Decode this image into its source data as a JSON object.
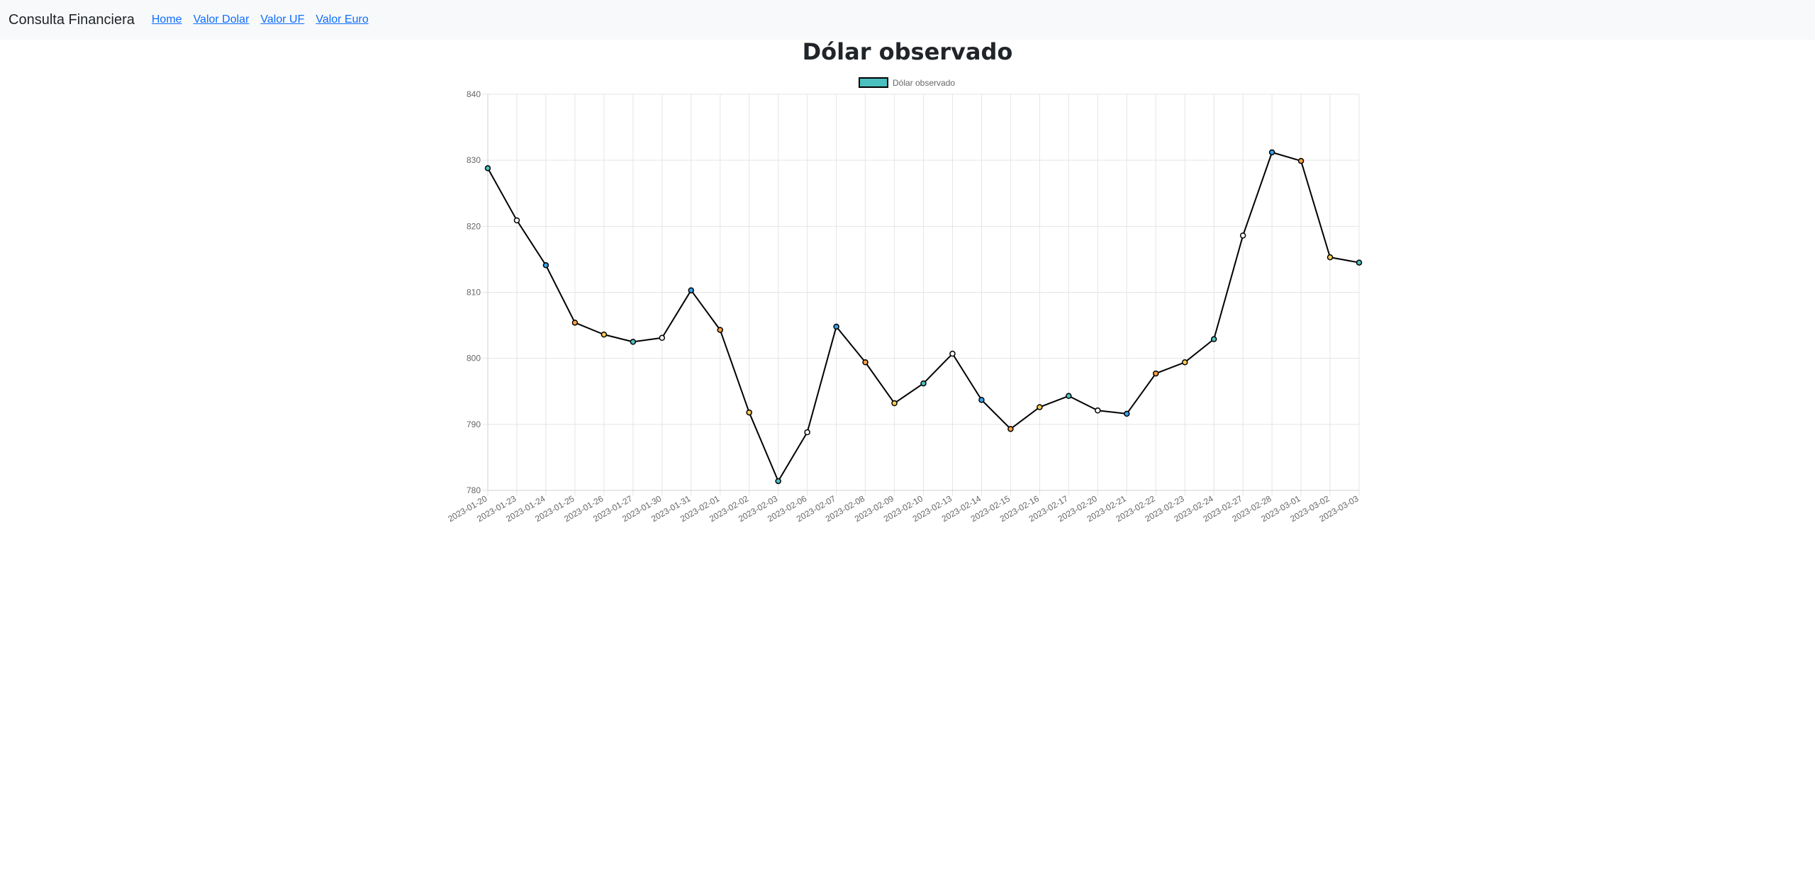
{
  "navbar": {
    "brand": "Consulta Financiera",
    "links": [
      {
        "label": "Home"
      },
      {
        "label": "Valor Dolar"
      },
      {
        "label": "Valor UF"
      },
      {
        "label": "Valor Euro"
      }
    ]
  },
  "page": {
    "title": "Dólar observado"
  },
  "colors": {
    "line": "#000000",
    "legend_fill": "#4bc0c0",
    "grid": "#e5e5e5",
    "tick_text": "#666666",
    "point_fills": [
      "#4bc0c0",
      "#ffffff",
      "#36a2eb",
      "#ff9f40",
      "#ffcd56"
    ]
  },
  "chart_data": {
    "type": "line",
    "title": "",
    "xlabel": "",
    "ylabel": "",
    "ylim": [
      780,
      840
    ],
    "yticks": [
      780,
      790,
      800,
      810,
      820,
      830,
      840
    ],
    "grid": true,
    "legend_position": "top-center",
    "categories": [
      "2023-01-20",
      "2023-01-23",
      "2023-01-24",
      "2023-01-25",
      "2023-01-26",
      "2023-01-27",
      "2023-01-30",
      "2023-01-31",
      "2023-02-01",
      "2023-02-02",
      "2023-02-03",
      "2023-02-06",
      "2023-02-07",
      "2023-02-08",
      "2023-02-09",
      "2023-02-10",
      "2023-02-13",
      "2023-02-14",
      "2023-02-15",
      "2023-02-16",
      "2023-02-17",
      "2023-02-20",
      "2023-02-21",
      "2023-02-22",
      "2023-02-23",
      "2023-02-24",
      "2023-02-27",
      "2023-02-28",
      "2023-03-01",
      "2023-03-02",
      "2023-03-03"
    ],
    "series": [
      {
        "name": "Dólar observado",
        "values": [
          828.8,
          820.9,
          814.1,
          805.4,
          803.6,
          802.5,
          803.1,
          810.3,
          804.3,
          791.8,
          781.4,
          788.8,
          804.8,
          799.4,
          793.2,
          796.2,
          800.7,
          793.7,
          789.3,
          792.6,
          794.3,
          792.1,
          791.6,
          797.7,
          799.4,
          802.9,
          818.6,
          831.2,
          829.9,
          815.3,
          814.5
        ]
      }
    ]
  }
}
